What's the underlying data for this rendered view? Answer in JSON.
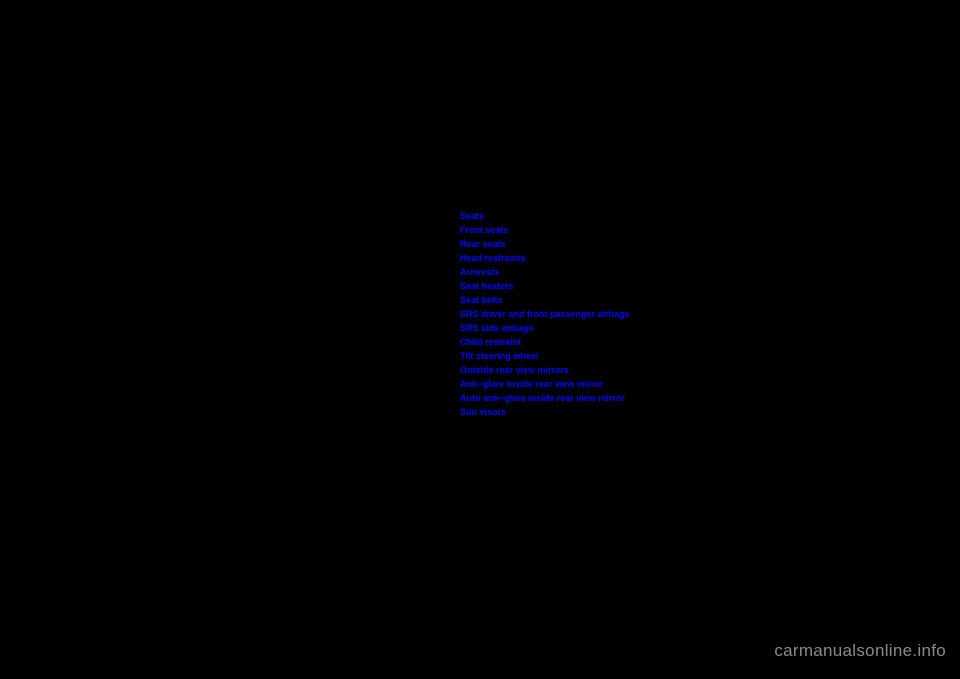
{
  "links": [
    "Seats",
    "Front seats",
    "Rear seats",
    "Head restraints",
    "Armrests",
    "Seat heaters",
    "Seat belts",
    "SRS driver and front passenger airbags",
    "SRS side airbags",
    "Child restraint",
    "Tilt steering wheel",
    "Outside rear view mirrors",
    "Anti−glare inside rear view mirror",
    "Auto anti−glare inside rear view mirror",
    "Sun visors"
  ],
  "watermark": "carmanualsonline.info",
  "colors": {
    "background": "#000000",
    "link": "#0000ff",
    "watermark": "#8a8a8a"
  }
}
